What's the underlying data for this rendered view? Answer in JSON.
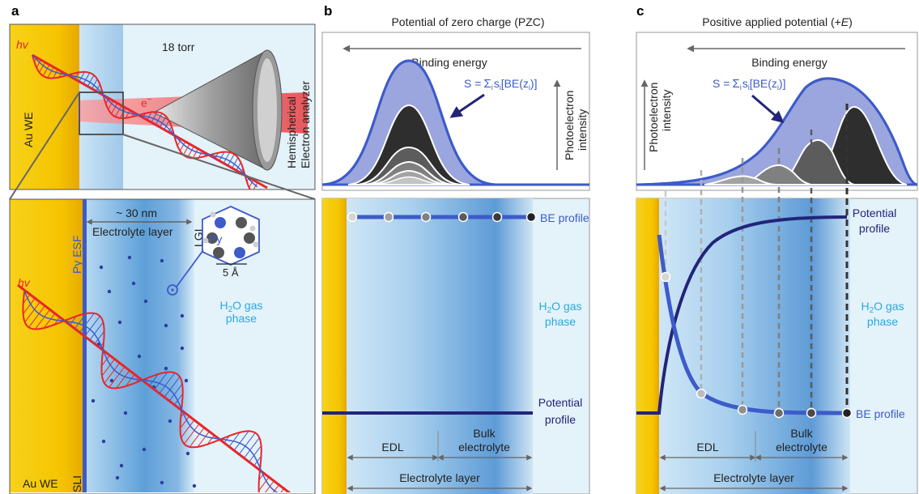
{
  "panel_a": {
    "letter": "a",
    "hv": "hv",
    "electron": "e",
    "electron_sup": "−",
    "pressure": "18 torr",
    "au_we": "Au WE",
    "analyzer_line1": "Hemispherical",
    "analyzer_line2": "Electron analyzer",
    "thickness": "~ 30 nm",
    "electrolyte_layer": "Electrolyte layer",
    "lgi": "LGI",
    "py_esf": "Py ESF",
    "py": "Py",
    "scale": "5 Å",
    "h2o_main": "H",
    "h2o_sub": "2",
    "h2o_rest": "O gas",
    "phase": "phase",
    "sli": "SLI",
    "au_we_bottom": "Au WE"
  },
  "panel_b": {
    "letter": "b",
    "title": "Potential of zero charge (PZC)",
    "binding_energy": "Binding energy",
    "formula_s": "S =",
    "formula_sum": "Σ",
    "formula_i": "i",
    "formula_rest": "s",
    "formula_be": "[BE(z",
    "formula_end": ")]",
    "photo_line1": "Photoelectron",
    "photo_line2": "intensity",
    "be_profile": "BE profile",
    "h2o_main": "H",
    "h2o_sub": "2",
    "h2o_rest": "O gas",
    "phase": "phase",
    "potential_line1": "Potential",
    "potential_line2": "profile",
    "edl": "EDL",
    "bulk_line1": "Bulk",
    "bulk_line2": "electrolyte",
    "electrolyte_layer": "Electrolyte layer"
  },
  "panel_c": {
    "letter": "c",
    "title_main": "Positive applied potential (+",
    "title_e": "E",
    "title_end": ")",
    "binding_energy": "Binding energy",
    "formula_s": "S =",
    "photo_line1": "Photoelectron",
    "photo_line2": "intensity",
    "potential_line1": "Potential",
    "potential_line2": "profile",
    "h2o_main": "H",
    "h2o_sub": "2",
    "h2o_rest": "O gas",
    "phase": "phase",
    "be_profile": "BE profile",
    "edl": "EDL",
    "bulk_line1": "Bulk",
    "bulk_line2": "electrolyte",
    "electrolyte_layer": "Electrolyte layer"
  },
  "colors": {
    "gold": "#f5c400",
    "navy": "#22247a",
    "blue": "#3d5bc9",
    "lavender": "#9aa6dd",
    "dark": "#3a3a3a",
    "red": "#e8262a",
    "cyan": "#29a9e0",
    "light_bg": "#e4f2fa"
  }
}
